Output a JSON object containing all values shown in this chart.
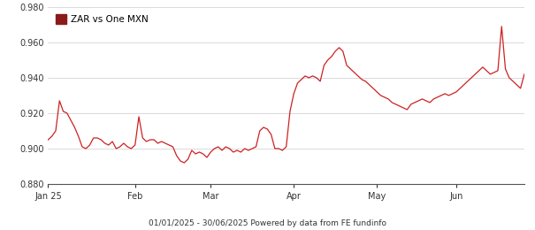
{
  "legend_label": "ZAR vs One MXN",
  "legend_color": "#8B1A1A",
  "line_color": "#CC2222",
  "background_color": "#ffffff",
  "grid_color": "#cccccc",
  "ylabel_color": "#333333",
  "xlabel_color": "#333333",
  "ylim": [
    0.88,
    0.98
  ],
  "yticks": [
    0.88,
    0.9,
    0.92,
    0.94,
    0.96,
    0.98
  ],
  "footer_text": "01/01/2025 - 30/06/2025 Powered by data from FE fundinfo",
  "x_tick_labels": [
    "Jan 25",
    "Feb",
    "Mar",
    "Apr",
    "May",
    "Jun"
  ],
  "x_tick_positions": [
    0,
    23,
    43,
    65,
    87,
    108
  ],
  "values": [
    0.905,
    0.907,
    0.91,
    0.927,
    0.921,
    0.92,
    0.916,
    0.912,
    0.907,
    0.901,
    0.9,
    0.902,
    0.906,
    0.906,
    0.905,
    0.903,
    0.902,
    0.904,
    0.9,
    0.901,
    0.903,
    0.901,
    0.9,
    0.902,
    0.918,
    0.906,
    0.904,
    0.905,
    0.905,
    0.903,
    0.904,
    0.903,
    0.902,
    0.901,
    0.896,
    0.893,
    0.892,
    0.894,
    0.899,
    0.897,
    0.898,
    0.897,
    0.895,
    0.898,
    0.9,
    0.901,
    0.899,
    0.901,
    0.9,
    0.898,
    0.899,
    0.898,
    0.9,
    0.899,
    0.9,
    0.901,
    0.91,
    0.912,
    0.911,
    0.908,
    0.9,
    0.9,
    0.899,
    0.901,
    0.921,
    0.931,
    0.937,
    0.939,
    0.941,
    0.94,
    0.941,
    0.94,
    0.938,
    0.947,
    0.95,
    0.952,
    0.955,
    0.957,
    0.955,
    0.947,
    0.945,
    0.943,
    0.941,
    0.939,
    0.938,
    0.936,
    0.934,
    0.932,
    0.93,
    0.929,
    0.928,
    0.926,
    0.925,
    0.924,
    0.923,
    0.922,
    0.925,
    0.926,
    0.927,
    0.928,
    0.927,
    0.926,
    0.928,
    0.929,
    0.93,
    0.931,
    0.93,
    0.931,
    0.932,
    0.934,
    0.936,
    0.938,
    0.94,
    0.942,
    0.944,
    0.946,
    0.944,
    0.942,
    0.943,
    0.944,
    0.969,
    0.945,
    0.94,
    0.938,
    0.936,
    0.934,
    0.942
  ]
}
